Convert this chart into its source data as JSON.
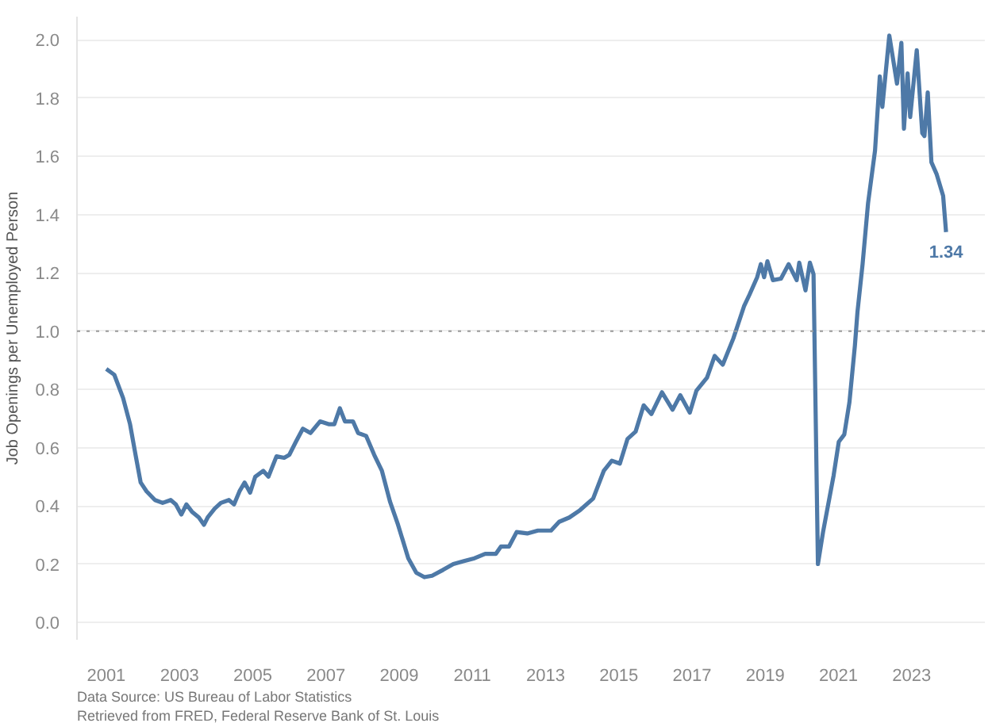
{
  "chart_data": {
    "type": "line",
    "ylabel": "Job Openings per Unemployed Person",
    "x": [
      2001.0,
      2001.22,
      2001.46,
      2001.65,
      2001.8,
      2001.94,
      2002.1,
      2002.33,
      2002.54,
      2002.76,
      2002.9,
      2003.05,
      2003.19,
      2003.34,
      2003.53,
      2003.67,
      2003.77,
      2003.96,
      2004.13,
      2004.35,
      2004.49,
      2004.64,
      2004.78,
      2004.93,
      2005.07,
      2005.29,
      2005.43,
      2005.65,
      2005.86,
      2006.0,
      2006.18,
      2006.37,
      2006.58,
      2006.84,
      2007.09,
      2007.23,
      2007.38,
      2007.52,
      2007.74,
      2007.88,
      2008.1,
      2008.32,
      2008.53,
      2008.75,
      2008.97,
      2009.25,
      2009.47,
      2009.69,
      2009.9,
      2010.2,
      2010.48,
      2010.77,
      2011.06,
      2011.35,
      2011.64,
      2011.78,
      2012.0,
      2012.21,
      2012.5,
      2012.79,
      2013.15,
      2013.37,
      2013.65,
      2013.94,
      2014.3,
      2014.59,
      2014.81,
      2015.03,
      2015.24,
      2015.46,
      2015.68,
      2015.89,
      2016.18,
      2016.47,
      2016.68,
      2016.94,
      2017.12,
      2017.41,
      2017.62,
      2017.84,
      2018.13,
      2018.42,
      2018.57,
      2018.78,
      2018.88,
      2018.97,
      2019.06,
      2019.21,
      2019.43,
      2019.64,
      2019.86,
      2019.93,
      2020.1,
      2020.22,
      2020.32,
      2020.44,
      2020.58,
      2020.87,
      2021.01,
      2021.16,
      2021.3,
      2021.45,
      2021.52,
      2021.66,
      2021.81,
      2022.0,
      2022.13,
      2022.2,
      2022.39,
      2022.6,
      2022.72,
      2022.79,
      2022.89,
      2022.96,
      2023.14,
      2023.29,
      2023.35,
      2023.44,
      2023.54,
      2023.68,
      2023.86,
      2023.94
    ],
    "series": [
      {
        "color": "#4e79a7",
        "values": [
          0.87,
          0.85,
          0.77,
          0.68,
          0.575,
          0.48,
          0.45,
          0.42,
          0.41,
          0.42,
          0.405,
          0.37,
          0.405,
          0.38,
          0.36,
          0.335,
          0.36,
          0.39,
          0.41,
          0.42,
          0.405,
          0.45,
          0.48,
          0.445,
          0.5,
          0.52,
          0.5,
          0.57,
          0.565,
          0.575,
          0.62,
          0.665,
          0.65,
          0.69,
          0.68,
          0.68,
          0.735,
          0.69,
          0.69,
          0.65,
          0.64,
          0.575,
          0.52,
          0.415,
          0.335,
          0.22,
          0.17,
          0.155,
          0.16,
          0.18,
          0.2,
          0.21,
          0.22,
          0.235,
          0.235,
          0.26,
          0.26,
          0.31,
          0.305,
          0.315,
          0.315,
          0.345,
          0.36,
          0.385,
          0.425,
          0.52,
          0.555,
          0.545,
          0.63,
          0.655,
          0.745,
          0.715,
          0.79,
          0.73,
          0.78,
          0.72,
          0.795,
          0.84,
          0.915,
          0.885,
          0.975,
          1.085,
          1.125,
          1.185,
          1.23,
          1.185,
          1.24,
          1.175,
          1.18,
          1.23,
          1.175,
          1.235,
          1.14,
          1.235,
          1.195,
          0.2,
          0.31,
          0.505,
          0.62,
          0.645,
          0.755,
          0.95,
          1.065,
          1.23,
          1.44,
          1.62,
          1.875,
          1.77,
          2.015,
          1.85,
          1.99,
          1.695,
          1.885,
          1.735,
          1.965,
          1.68,
          1.67,
          1.82,
          1.58,
          1.54,
          1.465,
          1.34
        ]
      }
    ],
    "xlim": [
      2000.2,
      2025.0
    ],
    "xticks": [
      2001,
      2003,
      2005,
      2007,
      2009,
      2011,
      2013,
      2015,
      2017,
      2019,
      2021,
      2023
    ],
    "ylim": [
      -0.06,
      2.08
    ],
    "yticks": [
      {
        "value": 0,
        "label": "0.0"
      },
      0.2,
      0.4,
      0.6,
      0.8,
      {
        "value": 1,
        "label": "1.0"
      },
      1.2,
      1.4,
      1.6,
      1.8,
      {
        "value": 2,
        "label": "2.0"
      }
    ],
    "grid": "y",
    "marker": "none",
    "line_style": "solid",
    "ref_lines": [
      {
        "axis": "y",
        "value": 1.0,
        "label": null,
        "color": "#999999",
        "line_style": "dotted"
      }
    ],
    "annotations": [
      {
        "text": "1.34",
        "x": 2023.94,
        "y": 1.34
      },
      "Data Source: US Bureau of Labor Statistics",
      "Retrieved from FRED, Federal Reserve Bank of St. Louis"
    ]
  }
}
